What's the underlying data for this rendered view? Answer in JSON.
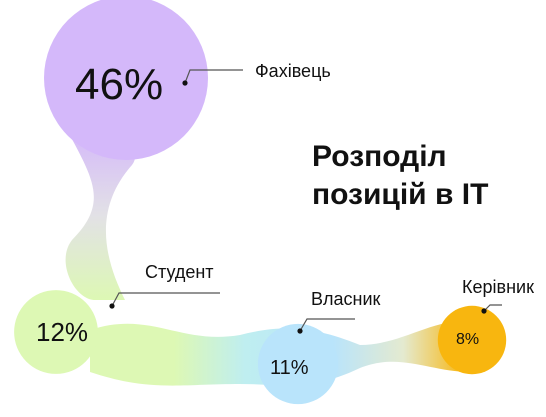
{
  "title_lines": [
    "Розподіл",
    "позицій в IT"
  ],
  "chart_data": {
    "type": "pie",
    "title": "Розподіл позицій в IT",
    "slices": [
      {
        "label": "Фахівець",
        "value": 46,
        "display": "46%",
        "color": "#d4b8fa"
      },
      {
        "label": "Студент",
        "value": 12,
        "display": "12%",
        "color": "#ddf8b4"
      },
      {
        "label": "Власник",
        "value": 11,
        "display": "11%",
        "color": "#b9e4fb"
      },
      {
        "label": "Керівник",
        "value": 8,
        "display": "8%",
        "color": "#f8b60f"
      }
    ]
  }
}
